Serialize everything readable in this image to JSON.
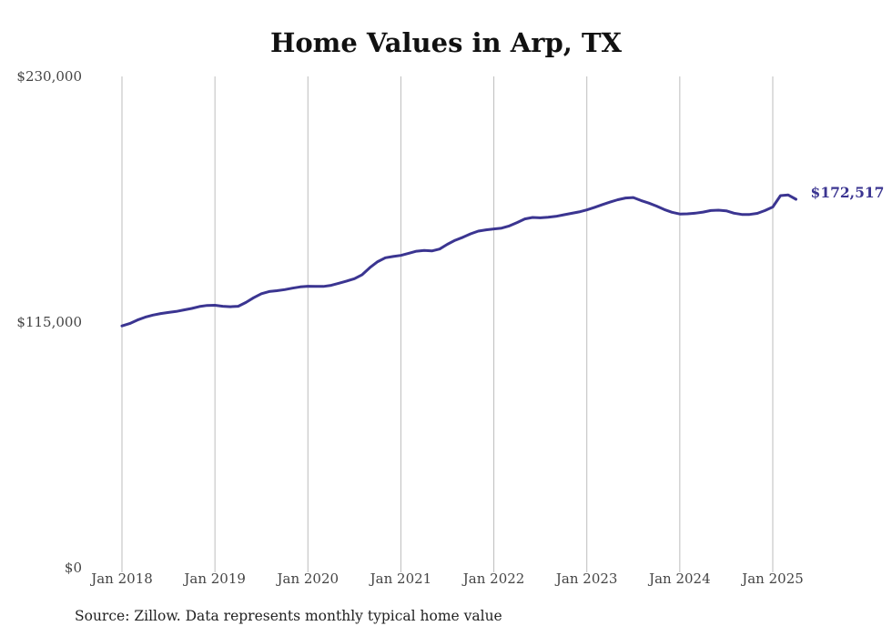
{
  "chart_data": {
    "type": "line",
    "title": "Home Values in Arp, TX",
    "xlabel": "",
    "ylabel": "",
    "ylim": [
      0,
      230000
    ],
    "xlim": [
      "2018-01",
      "2025-04"
    ],
    "y_ticks": [
      {
        "value": 0,
        "label": "$0"
      },
      {
        "value": 115000,
        "label": "$115,000"
      },
      {
        "value": 230000,
        "label": "$230,000"
      }
    ],
    "x_ticks": [
      {
        "date": "2018-01",
        "label": "Jan 2018"
      },
      {
        "date": "2019-01",
        "label": "Jan 2019"
      },
      {
        "date": "2020-01",
        "label": "Jan 2020"
      },
      {
        "date": "2021-01",
        "label": "Jan 2021"
      },
      {
        "date": "2022-01",
        "label": "Jan 2022"
      },
      {
        "date": "2023-01",
        "label": "Jan 2023"
      },
      {
        "date": "2024-01",
        "label": "Jan 2024"
      },
      {
        "date": "2025-01",
        "label": "Jan 2025"
      }
    ],
    "grid": "vertical",
    "series": [
      {
        "color": "#3b3591",
        "end_label": "$172,517",
        "points": [
          [
            "2018-01",
            113200
          ],
          [
            "2018-02",
            114300
          ],
          [
            "2018-03",
            116000
          ],
          [
            "2018-04",
            117300
          ],
          [
            "2018-05",
            118300
          ],
          [
            "2018-06",
            119000
          ],
          [
            "2018-07",
            119500
          ],
          [
            "2018-08",
            120000
          ],
          [
            "2018-09",
            120700
          ],
          [
            "2018-10",
            121400
          ],
          [
            "2018-11",
            122300
          ],
          [
            "2018-12",
            122800
          ],
          [
            "2019-01",
            122900
          ],
          [
            "2019-02",
            122400
          ],
          [
            "2019-03",
            122200
          ],
          [
            "2019-04",
            122400
          ],
          [
            "2019-05",
            124200
          ],
          [
            "2019-06",
            126400
          ],
          [
            "2019-07",
            128300
          ],
          [
            "2019-08",
            129300
          ],
          [
            "2019-09",
            129700
          ],
          [
            "2019-10",
            130200
          ],
          [
            "2019-11",
            130900
          ],
          [
            "2019-12",
            131500
          ],
          [
            "2020-01",
            131800
          ],
          [
            "2020-02",
            131700
          ],
          [
            "2020-03",
            131700
          ],
          [
            "2020-04",
            132200
          ],
          [
            "2020-05",
            133200
          ],
          [
            "2020-06",
            134200
          ],
          [
            "2020-07",
            135300
          ],
          [
            "2020-08",
            137200
          ],
          [
            "2020-09",
            140500
          ],
          [
            "2020-10",
            143300
          ],
          [
            "2020-11",
            145100
          ],
          [
            "2020-12",
            145700
          ],
          [
            "2021-01",
            146200
          ],
          [
            "2021-02",
            147200
          ],
          [
            "2021-03",
            148200
          ],
          [
            "2021-04",
            148500
          ],
          [
            "2021-05",
            148300
          ],
          [
            "2021-06",
            149200
          ],
          [
            "2021-07",
            151400
          ],
          [
            "2021-08",
            153300
          ],
          [
            "2021-09",
            154700
          ],
          [
            "2021-10",
            156300
          ],
          [
            "2021-11",
            157600
          ],
          [
            "2021-12",
            158200
          ],
          [
            "2022-01",
            158600
          ],
          [
            "2022-02",
            159000
          ],
          [
            "2022-03",
            160000
          ],
          [
            "2022-04",
            161600
          ],
          [
            "2022-05",
            163300
          ],
          [
            "2022-06",
            164000
          ],
          [
            "2022-07",
            163800
          ],
          [
            "2022-08",
            164100
          ],
          [
            "2022-09",
            164500
          ],
          [
            "2022-10",
            165200
          ],
          [
            "2022-11",
            165900
          ],
          [
            "2022-12",
            166600
          ],
          [
            "2023-01",
            167500
          ],
          [
            "2023-02",
            168700
          ],
          [
            "2023-03",
            170000
          ],
          [
            "2023-04",
            171200
          ],
          [
            "2023-05",
            172300
          ],
          [
            "2023-06",
            173100
          ],
          [
            "2023-07",
            173300
          ],
          [
            "2023-08",
            171900
          ],
          [
            "2023-09",
            170700
          ],
          [
            "2023-10",
            169300
          ],
          [
            "2023-11",
            167700
          ],
          [
            "2023-12",
            166400
          ],
          [
            "2024-01",
            165600
          ],
          [
            "2024-02",
            165700
          ],
          [
            "2024-03",
            166000
          ],
          [
            "2024-04",
            166500
          ],
          [
            "2024-05",
            167200
          ],
          [
            "2024-06",
            167400
          ],
          [
            "2024-07",
            167100
          ],
          [
            "2024-08",
            166000
          ],
          [
            "2024-09",
            165400
          ],
          [
            "2024-10",
            165400
          ],
          [
            "2024-11",
            165900
          ],
          [
            "2024-12",
            167200
          ],
          [
            "2025-01",
            168900
          ],
          [
            "2025-02",
            174200
          ],
          [
            "2025-03",
            174500
          ],
          [
            "2025-04",
            172500
          ]
        ]
      }
    ]
  },
  "footer": {
    "source": "Source: Zillow. Data represents monthly typical home value"
  }
}
